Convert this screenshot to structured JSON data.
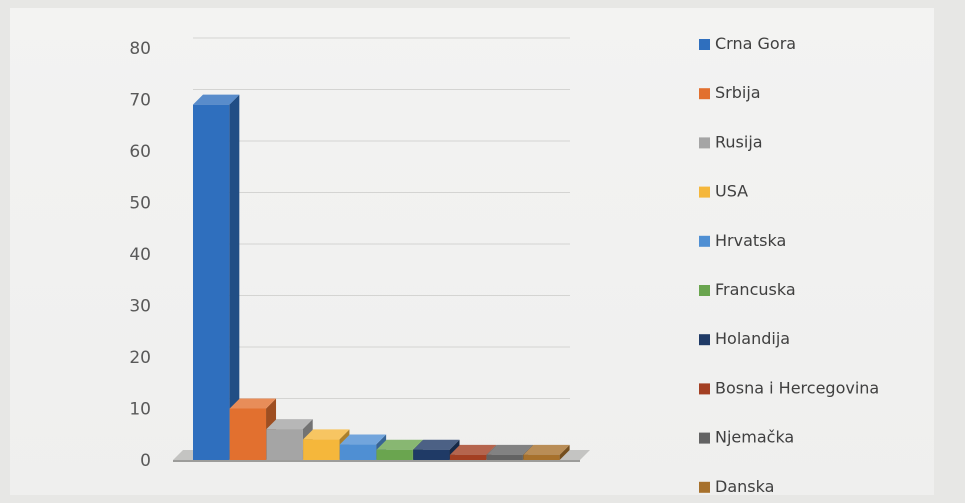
{
  "chart_data": {
    "type": "bar",
    "title": "",
    "xlabel": "",
    "ylabel": "",
    "ylim": [
      0,
      80
    ],
    "yticks": [
      0,
      10,
      20,
      30,
      40,
      50,
      60,
      70,
      80
    ],
    "grid": true,
    "legend_position": "right",
    "three_d": true,
    "categories": [
      "Crna Gora",
      "Srbija",
      "Rusija",
      "USA",
      "Hrvatska",
      "Francuska",
      "Holandija",
      "Bosna i Hercegovina",
      "Njemačka",
      "Danska"
    ],
    "values": [
      69,
      10,
      6,
      4,
      3,
      2,
      2,
      1,
      1,
      1
    ],
    "colors": [
      "#2f6fbe",
      "#e2702f",
      "#a5a5a5",
      "#f5b73b",
      "#4f8fd3",
      "#6aa54f",
      "#1f3a66",
      "#a33f22",
      "#636363",
      "#a7712c"
    ]
  }
}
